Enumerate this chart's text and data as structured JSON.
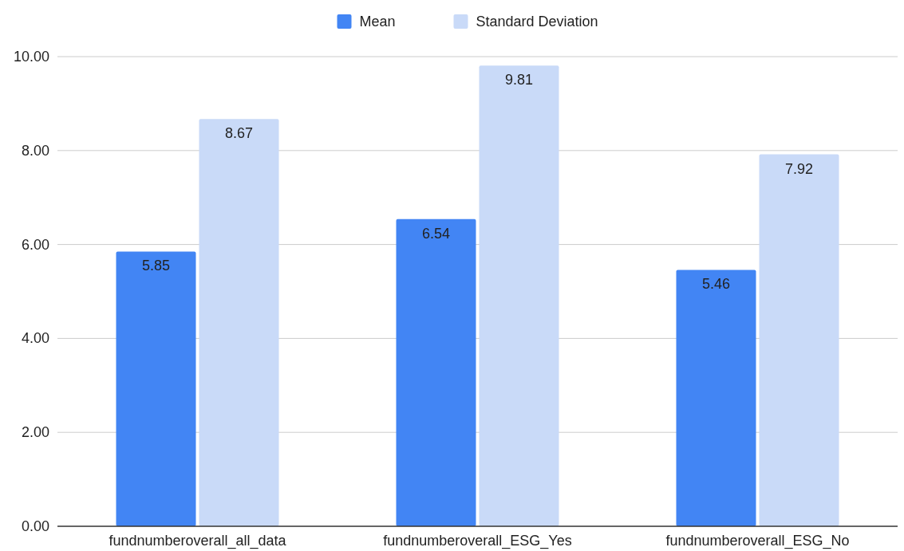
{
  "chart_data": {
    "type": "bar",
    "categories": [
      "fundnumberoverall_all_data",
      "fundnumberoverall_ESG_Yes",
      "fundnumberoverall_ESG_No"
    ],
    "series": [
      {
        "name": "Mean",
        "color": "#4285f4",
        "values": [
          5.85,
          6.54,
          5.46
        ]
      },
      {
        "name": "Standard Deviation",
        "color": "#c9daf8",
        "values": [
          8.67,
          9.81,
          7.92
        ]
      }
    ],
    "ylim": [
      0,
      10
    ],
    "yticks": [
      {
        "value": 0,
        "label": "0.00"
      },
      {
        "value": 2,
        "label": "2.00"
      },
      {
        "value": 4,
        "label": "4.00"
      },
      {
        "value": 6,
        "label": "6.00"
      },
      {
        "value": 8,
        "label": "8.00"
      },
      {
        "value": 10,
        "label": "10.00"
      }
    ],
    "grid": "y",
    "legend": "top",
    "data_labels": true
  }
}
